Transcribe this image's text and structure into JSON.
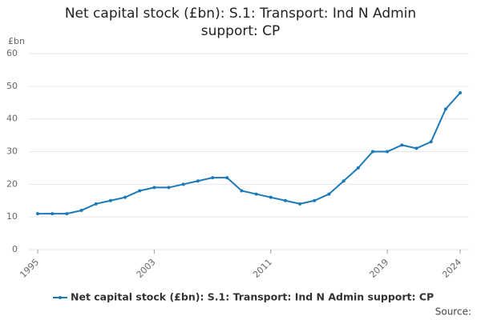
{
  "chart_data": {
    "type": "line",
    "title": "Net capital stock (£bn): S.1: Transport: Ind N Admin support: CP",
    "y_label": "£bn",
    "source": "Source:",
    "x": [
      1995,
      1996,
      1997,
      1998,
      1999,
      2000,
      2001,
      2002,
      2003,
      2004,
      2005,
      2006,
      2007,
      2008,
      2009,
      2010,
      2011,
      2012,
      2013,
      2014,
      2015,
      2016,
      2017,
      2018,
      2019,
      2020,
      2021,
      2022,
      2023,
      2024
    ],
    "series": [
      {
        "name": "Net capital stock (£bn): S.1: Transport: Ind N Admin support: CP",
        "color": "#1a7ab8",
        "values": [
          11,
          11,
          11,
          12,
          14,
          15,
          16,
          18,
          19,
          19,
          20,
          21,
          22,
          22,
          18,
          17,
          16,
          15,
          14,
          15,
          17,
          21,
          25,
          30,
          30,
          32,
          31,
          33,
          43,
          48
        ]
      }
    ],
    "xlim": [
      1995,
      2024
    ],
    "xticks": [
      1995,
      2003,
      2011,
      2019,
      2024
    ],
    "ylim": [
      0,
      60
    ],
    "yticks": [
      0,
      10,
      20,
      30,
      40,
      50,
      60
    ],
    "grid": true,
    "legend": "bottom"
  }
}
